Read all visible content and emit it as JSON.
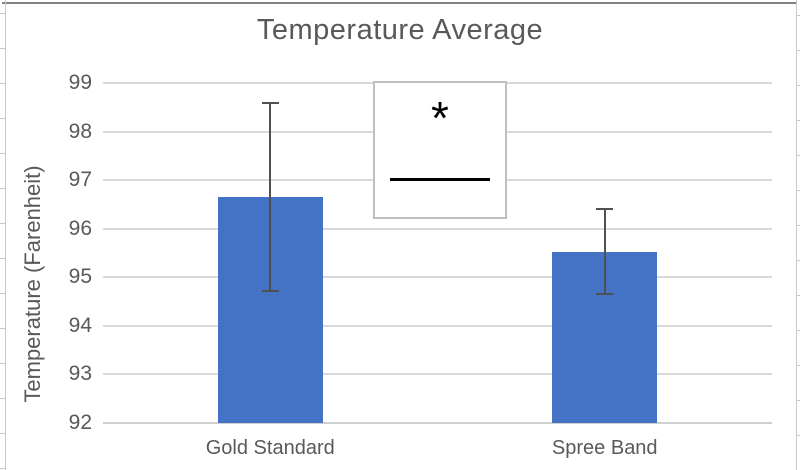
{
  "chart_data": {
    "type": "bar",
    "title": "Temperature Average",
    "xlabel": "",
    "ylabel": "Temperature (Farenheit)",
    "categories": [
      "Gold Standard",
      "Spree Band"
    ],
    "values": [
      96.65,
      95.53
    ],
    "error_bars": [
      1.93,
      0.88
    ],
    "ylim": [
      92,
      99
    ],
    "yticks": [
      92,
      93,
      94,
      95,
      96,
      97,
      98,
      99
    ],
    "grid": true,
    "legend": "none",
    "annotation": {
      "symbol": "*",
      "meaning": "significance marker between the two bars"
    }
  },
  "colors": {
    "bar": "#4472C4",
    "text": "#595959",
    "gridline": "#d9d9d9",
    "error_bar": "#505050",
    "significance_line": "#000000",
    "annotation_border": "#bfbfbf",
    "top_frame": "#828282",
    "ruler": "#c9c9c9"
  }
}
